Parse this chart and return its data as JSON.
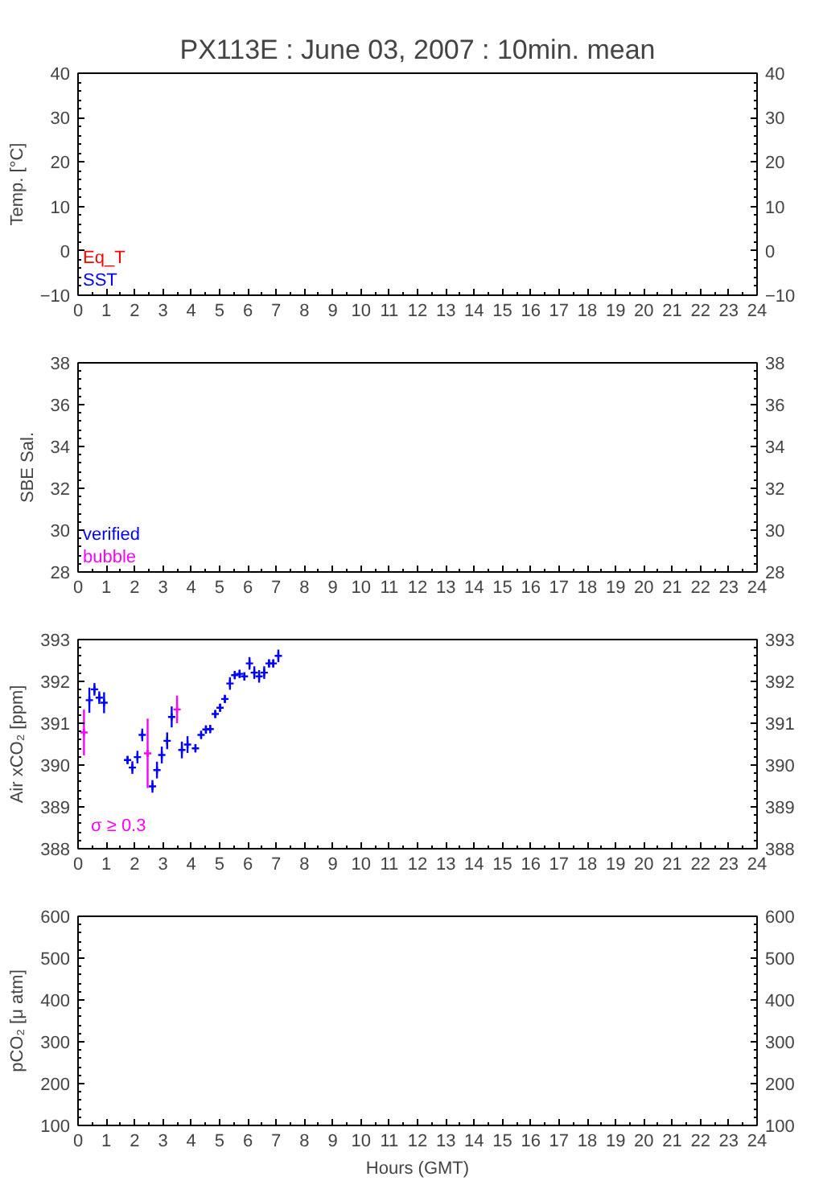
{
  "chart_data": [
    {
      "type": "scatter",
      "title": "PX113E : June 03, 2007 : 10min. mean",
      "ylabel": "Temp. [°C]",
      "xlim": [
        0,
        24
      ],
      "xticks": [
        0,
        1,
        2,
        3,
        4,
        5,
        6,
        7,
        8,
        9,
        10,
        11,
        12,
        13,
        14,
        15,
        16,
        17,
        18,
        19,
        20,
        21,
        22,
        23,
        24
      ],
      "ylim": [
        -10,
        40
      ],
      "yticks": [
        -10,
        0,
        10,
        20,
        30,
        40
      ],
      "y2lim": [
        -10,
        40
      ],
      "y2ticks": [
        -10,
        0,
        10,
        20,
        30,
        40
      ],
      "grid": false,
      "annotations": [
        "Eq_T",
        "SST"
      ]
    },
    {
      "type": "scatter",
      "ylabel": "SBE Sal.",
      "xlim": [
        0,
        24
      ],
      "xticks": [
        0,
        1,
        2,
        3,
        4,
        5,
        6,
        7,
        8,
        9,
        10,
        11,
        12,
        13,
        14,
        15,
        16,
        17,
        18,
        19,
        20,
        21,
        22,
        23,
        24
      ],
      "ylim": [
        28,
        38
      ],
      "yticks": [
        28,
        30,
        32,
        34,
        36,
        38
      ],
      "y2lim": [
        28,
        38
      ],
      "y2ticks": [
        28,
        30,
        32,
        34,
        36,
        38
      ],
      "grid": false,
      "annotations": [
        "verified",
        "bubble"
      ]
    },
    {
      "type": "scatter",
      "ylabel": "Air xCO₂ [ppm]",
      "xlim": [
        0,
        24
      ],
      "xticks": [
        0,
        1,
        2,
        3,
        4,
        5,
        6,
        7,
        8,
        9,
        10,
        11,
        12,
        13,
        14,
        15,
        16,
        17,
        18,
        19,
        20,
        21,
        22,
        23,
        24
      ],
      "ylim": [
        388,
        393
      ],
      "yticks": [
        388,
        389,
        390,
        391,
        392,
        393
      ],
      "y2lim": [
        388,
        393
      ],
      "y2ticks": [
        388,
        389,
        390,
        391,
        392,
        393
      ],
      "grid": false,
      "marker": "cross",
      "annotations": [
        "σ ≥ 0.3"
      ],
      "series": [
        {
          "color": "#0000ff",
          "x": [
            0.4,
            0.58,
            0.75,
            0.92,
            1.75,
            1.92,
            2.1,
            2.27,
            2.63,
            2.79,
            2.96,
            3.15,
            3.31,
            3.67,
            3.87,
            4.15,
            4.35,
            4.52,
            4.67,
            4.85,
            5.02,
            5.19,
            5.37,
            5.54,
            5.71,
            5.88,
            6.06,
            6.23,
            6.4,
            6.58,
            6.75,
            6.9,
            7.08
          ],
          "values": [
            391.55,
            391.81,
            391.61,
            391.49,
            390.12,
            389.94,
            390.19,
            390.72,
            389.49,
            389.88,
            390.24,
            390.58,
            391.15,
            390.36,
            390.49,
            390.4,
            390.72,
            390.85,
            390.86,
            391.22,
            391.37,
            391.58,
            391.95,
            392.15,
            392.18,
            392.12,
            392.43,
            392.21,
            392.12,
            392.21,
            392.43,
            392.43,
            392.61
          ],
          "errors": [
            0.3,
            0.15,
            0.15,
            0.25,
            0.1,
            0.15,
            0.15,
            0.15,
            0.15,
            0.2,
            0.2,
            0.2,
            0.25,
            0.2,
            0.2,
            0.1,
            0.1,
            0.1,
            0.1,
            0.1,
            0.1,
            0.1,
            0.15,
            0.1,
            0.1,
            0.1,
            0.15,
            0.15,
            0.15,
            0.15,
            0.1,
            0.1,
            0.15
          ]
        },
        {
          "color": "#ff00ff",
          "x": [
            0.21,
            2.46,
            3.5
          ],
          "values": [
            390.78,
            390.28,
            391.33
          ],
          "errors": [
            0.55,
            0.83,
            0.33
          ]
        }
      ]
    },
    {
      "type": "scatter",
      "ylabel": "pCO₂ [μ atm]",
      "xlabel": "Hours (GMT)",
      "xlim": [
        0,
        24
      ],
      "xticks": [
        0,
        1,
        2,
        3,
        4,
        5,
        6,
        7,
        8,
        9,
        10,
        11,
        12,
        13,
        14,
        15,
        16,
        17,
        18,
        19,
        20,
        21,
        22,
        23,
        24
      ],
      "ylim": [
        100,
        600
      ],
      "yticks": [
        100,
        200,
        300,
        400,
        500,
        600
      ],
      "y2lim": [
        100,
        600
      ],
      "y2ticks": [
        100,
        200,
        300,
        400,
        500,
        600
      ],
      "grid": false
    }
  ]
}
